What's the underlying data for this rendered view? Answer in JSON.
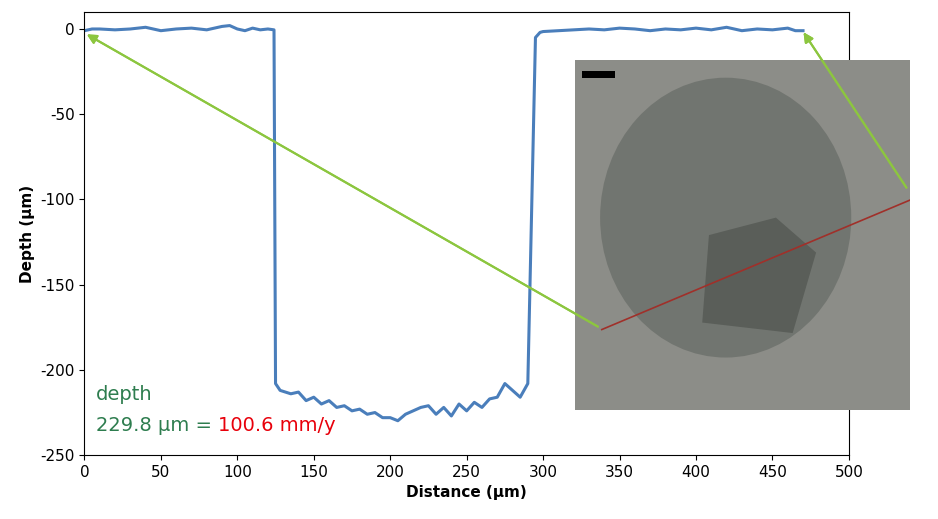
{
  "chart_data": {
    "type": "line",
    "x_label": "Distance (μm)",
    "y_label": "Depth (μm)",
    "x": [
      0,
      5,
      10,
      20,
      30,
      40,
      50,
      60,
      70,
      80,
      90,
      95,
      100,
      105,
      110,
      115,
      120,
      124,
      125,
      128,
      135,
      140,
      145,
      150,
      155,
      160,
      165,
      170,
      175,
      180,
      185,
      190,
      195,
      200,
      205,
      210,
      215,
      220,
      225,
      230,
      235,
      240,
      245,
      250,
      255,
      260,
      265,
      270,
      275,
      280,
      285,
      290,
      295,
      298,
      300,
      310,
      320,
      330,
      340,
      350,
      360,
      370,
      380,
      390,
      400,
      410,
      420,
      430,
      440,
      450,
      460,
      465,
      470
    ],
    "series": [
      {
        "name": "Depth",
        "color": "#4a7ebb",
        "line_style": "solid",
        "values": [
          -1,
          0,
          0,
          -0.5,
          0,
          1,
          -1,
          0,
          0.5,
          -0.5,
          1.5,
          2,
          0,
          -1,
          0.5,
          -0.5,
          0,
          -0.5,
          -208,
          -212,
          -214,
          -213,
          -218,
          -216,
          -220,
          -218,
          -222,
          -221,
          -224,
          -223,
          -226,
          -225,
          -228,
          -228,
          -229.8,
          -226,
          -224,
          -222,
          -221,
          -226,
          -222,
          -227,
          -220,
          -224,
          -219,
          -222,
          -217,
          -216,
          -208,
          -212,
          -216,
          -208,
          -5,
          -2,
          -1.5,
          -1,
          -0.5,
          0,
          -0.5,
          0.5,
          0,
          -1,
          0,
          -0.5,
          0.5,
          -0.5,
          1,
          -1,
          0,
          -0.5,
          0.5,
          -1,
          -1
        ]
      }
    ],
    "xlim": [
      0,
      500
    ],
    "xticks": [
      0,
      50,
      100,
      150,
      200,
      250,
      300,
      350,
      400,
      450,
      500
    ],
    "ylim": [
      -250,
      10
    ],
    "yticks": [
      -250,
      -200,
      -150,
      -100,
      -50,
      0
    ],
    "grid": false,
    "annotations": [
      {
        "text": "depth",
        "color": "#2e7d4f"
      },
      {
        "text": "229.8 μm = ",
        "color": "#2e7d4f"
      },
      {
        "text": "100.6 mm/y",
        "color": "#e8000b"
      }
    ]
  }
}
